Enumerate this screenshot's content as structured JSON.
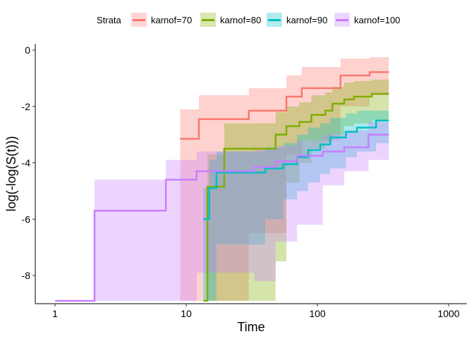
{
  "chart_data": {
    "type": "line",
    "step": true,
    "xlabel": "Time",
    "ylabel": "log(-log(S(t)))",
    "x_scale": "log10",
    "xlim": [
      1,
      1000
    ],
    "ylim": [
      -8.9,
      0.2
    ],
    "x_ticks": [
      1,
      10,
      100,
      1000
    ],
    "x_tick_labels": [
      "1",
      "10",
      "100",
      "1000"
    ],
    "y_ticks": [
      0,
      -2,
      -4,
      -6,
      -8
    ],
    "y_tick_labels": [
      "0",
      "-2",
      "-4",
      "-6",
      "-8"
    ],
    "grid": false,
    "confidence_bands": true,
    "legend": {
      "title": "Strata",
      "position": "top",
      "labels": [
        "karnof=70",
        "karnof=80",
        "karnof=90",
        "karnof=100"
      ]
    },
    "series": [
      {
        "name": "karnof=70",
        "color": "#F8766D",
        "steps": [
          [
            9,
            -3.15
          ],
          [
            12.5,
            -2.45
          ],
          [
            30,
            -2.15
          ],
          [
            58,
            -1.65
          ],
          [
            76,
            -1.35
          ],
          [
            150,
            -0.9
          ],
          [
            250,
            -0.78
          ],
          [
            350,
            -0.78
          ]
        ],
        "upper": [
          [
            9,
            -2.1
          ],
          [
            12.5,
            -1.6
          ],
          [
            30,
            -1.35
          ],
          [
            58,
            -0.9
          ],
          [
            76,
            -0.6
          ],
          [
            150,
            -0.3
          ],
          [
            250,
            -0.25
          ],
          [
            350,
            -0.25
          ]
        ],
        "lower": [
          [
            9,
            -8.9
          ],
          [
            12.5,
            -8.9
          ],
          [
            30,
            -6.5
          ],
          [
            58,
            -3.7
          ],
          [
            76,
            -3.2
          ],
          [
            150,
            -2.0
          ],
          [
            250,
            -1.6
          ],
          [
            350,
            -1.6
          ]
        ]
      },
      {
        "name": "karnof=80",
        "color": "#7CAE00",
        "steps": [
          [
            13.5,
            -8.9
          ],
          [
            14.5,
            -4.85
          ],
          [
            19.5,
            -3.5
          ],
          [
            48,
            -3.0
          ],
          [
            58,
            -2.7
          ],
          [
            73,
            -2.55
          ],
          [
            90,
            -2.3
          ],
          [
            115,
            -2.15
          ],
          [
            130,
            -1.9
          ],
          [
            160,
            -1.75
          ],
          [
            190,
            -1.65
          ],
          [
            260,
            -1.55
          ],
          [
            350,
            -1.55
          ]
        ],
        "upper": [
          [
            13.5,
            -8.9
          ],
          [
            14.5,
            -3.7
          ],
          [
            19.5,
            -2.6
          ],
          [
            48,
            -2.2
          ],
          [
            58,
            -2.0
          ],
          [
            73,
            -1.85
          ],
          [
            90,
            -1.6
          ],
          [
            115,
            -1.5
          ],
          [
            130,
            -1.3
          ],
          [
            160,
            -1.15
          ],
          [
            190,
            -1.1
          ],
          [
            260,
            -1.05
          ],
          [
            350,
            -1.05
          ]
        ],
        "lower": [
          [
            13.5,
            -8.9
          ],
          [
            14.5,
            -8.9
          ],
          [
            19.5,
            -8.9
          ],
          [
            48,
            -7.5
          ],
          [
            58,
            -4.7
          ],
          [
            73,
            -4.0
          ],
          [
            90,
            -3.5
          ],
          [
            115,
            -3.3
          ],
          [
            130,
            -3.0
          ],
          [
            160,
            -2.7
          ],
          [
            190,
            -2.6
          ],
          [
            260,
            -2.5
          ],
          [
            350,
            -2.5
          ]
        ]
      },
      {
        "name": "karnof=90",
        "color": "#00BFC4",
        "steps": [
          [
            13.5,
            -6.0
          ],
          [
            15,
            -4.9
          ],
          [
            17,
            -4.35
          ],
          [
            40,
            -4.2
          ],
          [
            55,
            -4.05
          ],
          [
            70,
            -3.8
          ],
          [
            85,
            -3.55
          ],
          [
            105,
            -3.35
          ],
          [
            125,
            -3.1
          ],
          [
            165,
            -2.9
          ],
          [
            200,
            -2.75
          ],
          [
            280,
            -2.5
          ],
          [
            350,
            -2.5
          ]
        ],
        "upper": [
          [
            13.5,
            -4.9
          ],
          [
            15,
            -3.9
          ],
          [
            17,
            -3.6
          ],
          [
            40,
            -3.45
          ],
          [
            55,
            -3.3
          ],
          [
            70,
            -3.0
          ],
          [
            85,
            -2.75
          ],
          [
            105,
            -2.6
          ],
          [
            125,
            -2.4
          ],
          [
            165,
            -2.25
          ],
          [
            200,
            -2.15
          ],
          [
            280,
            -2.15
          ],
          [
            350,
            -2.15
          ]
        ],
        "lower": [
          [
            13.5,
            -8.9
          ],
          [
            15,
            -8.9
          ],
          [
            17,
            -6.9
          ],
          [
            40,
            -6.0
          ],
          [
            55,
            -5.3
          ],
          [
            70,
            -5.0
          ],
          [
            85,
            -4.7
          ],
          [
            105,
            -4.4
          ],
          [
            125,
            -4.2
          ],
          [
            165,
            -3.8
          ],
          [
            200,
            -3.6
          ],
          [
            280,
            -3.3
          ],
          [
            350,
            -3.3
          ]
        ]
      },
      {
        "name": "karnof=100",
        "color": "#C77CFF",
        "steps": [
          [
            1,
            -8.9
          ],
          [
            2,
            -5.7
          ],
          [
            7,
            -4.6
          ],
          [
            12,
            -4.3
          ],
          [
            33,
            -4.15
          ],
          [
            48,
            -3.95
          ],
          [
            70,
            -3.75
          ],
          [
            110,
            -3.6
          ],
          [
            160,
            -3.45
          ],
          [
            245,
            -3.0
          ],
          [
            350,
            -3.0
          ]
        ],
        "upper": [
          [
            1,
            -8.9
          ],
          [
            2,
            -4.6
          ],
          [
            7,
            -3.9
          ],
          [
            12,
            -3.6
          ],
          [
            33,
            -3.5
          ],
          [
            48,
            -3.4
          ],
          [
            70,
            -3.2
          ],
          [
            110,
            -3.0
          ],
          [
            160,
            -2.85
          ],
          [
            245,
            -2.55
          ],
          [
            350,
            -2.55
          ]
        ],
        "lower": [
          [
            1,
            -8.9
          ],
          [
            2,
            -8.9
          ],
          [
            7,
            -8.9
          ],
          [
            12,
            -7.9
          ],
          [
            33,
            -8.2
          ],
          [
            48,
            -6.8
          ],
          [
            70,
            -6.2
          ],
          [
            110,
            -4.8
          ],
          [
            160,
            -4.3
          ],
          [
            245,
            -3.9
          ],
          [
            350,
            -3.9
          ]
        ]
      }
    ]
  }
}
